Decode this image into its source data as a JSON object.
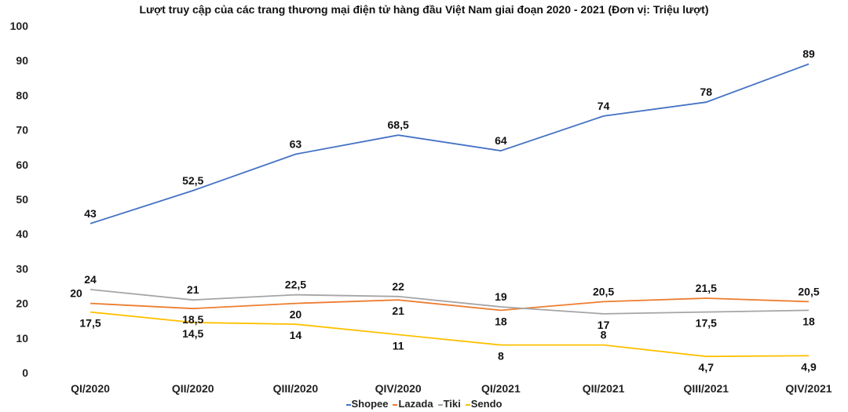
{
  "chart_data": {
    "type": "line",
    "title": "Lượt truy cập của các trang thương mại điện tử hàng đầu Việt Nam giai đoạn 2020 - 2021 (Đơn vị: Triệu lượt)",
    "categories": [
      "QI/2020",
      "QII/2020",
      "QIII/2020",
      "QIV/2020",
      "QI/2021",
      "QII/2021",
      "QIII/2021",
      "QIV/2021"
    ],
    "ylim": [
      0,
      100
    ],
    "yticks": [
      0,
      10,
      20,
      30,
      40,
      50,
      60,
      70,
      80,
      90,
      100
    ],
    "grid": false,
    "legend_position": "bottom",
    "series": [
      {
        "name": "Shopee",
        "color": "#4472C4",
        "values": [
          43,
          52.5,
          63,
          68.5,
          64,
          74,
          78,
          89
        ],
        "labels": [
          "43",
          "52,5",
          "63",
          "68,5",
          "64",
          "74",
          "78",
          "89"
        ]
      },
      {
        "name": "Lazada",
        "color": "#ED7D31",
        "values": [
          20,
          18.5,
          20,
          21,
          18,
          20.5,
          21.5,
          20.5
        ],
        "labels": [
          "20",
          "18,5",
          "20",
          "21",
          "18",
          "20,5",
          "21,5",
          "20,5"
        ]
      },
      {
        "name": "Tiki",
        "color": "#A5A5A5",
        "values": [
          24,
          21,
          22.5,
          22,
          19,
          17,
          17.5,
          18
        ],
        "labels": [
          "24",
          "21",
          "22,5",
          "22",
          "19",
          "17",
          "17,5",
          "18"
        ]
      },
      {
        "name": "Sendo",
        "color": "#FFC000",
        "values": [
          17.5,
          14.5,
          14,
          11,
          8,
          8,
          4.7,
          4.9
        ],
        "labels": [
          "17,5",
          "14,5",
          "14",
          "11",
          "8",
          "8",
          "4,7",
          "4,9"
        ]
      }
    ]
  }
}
